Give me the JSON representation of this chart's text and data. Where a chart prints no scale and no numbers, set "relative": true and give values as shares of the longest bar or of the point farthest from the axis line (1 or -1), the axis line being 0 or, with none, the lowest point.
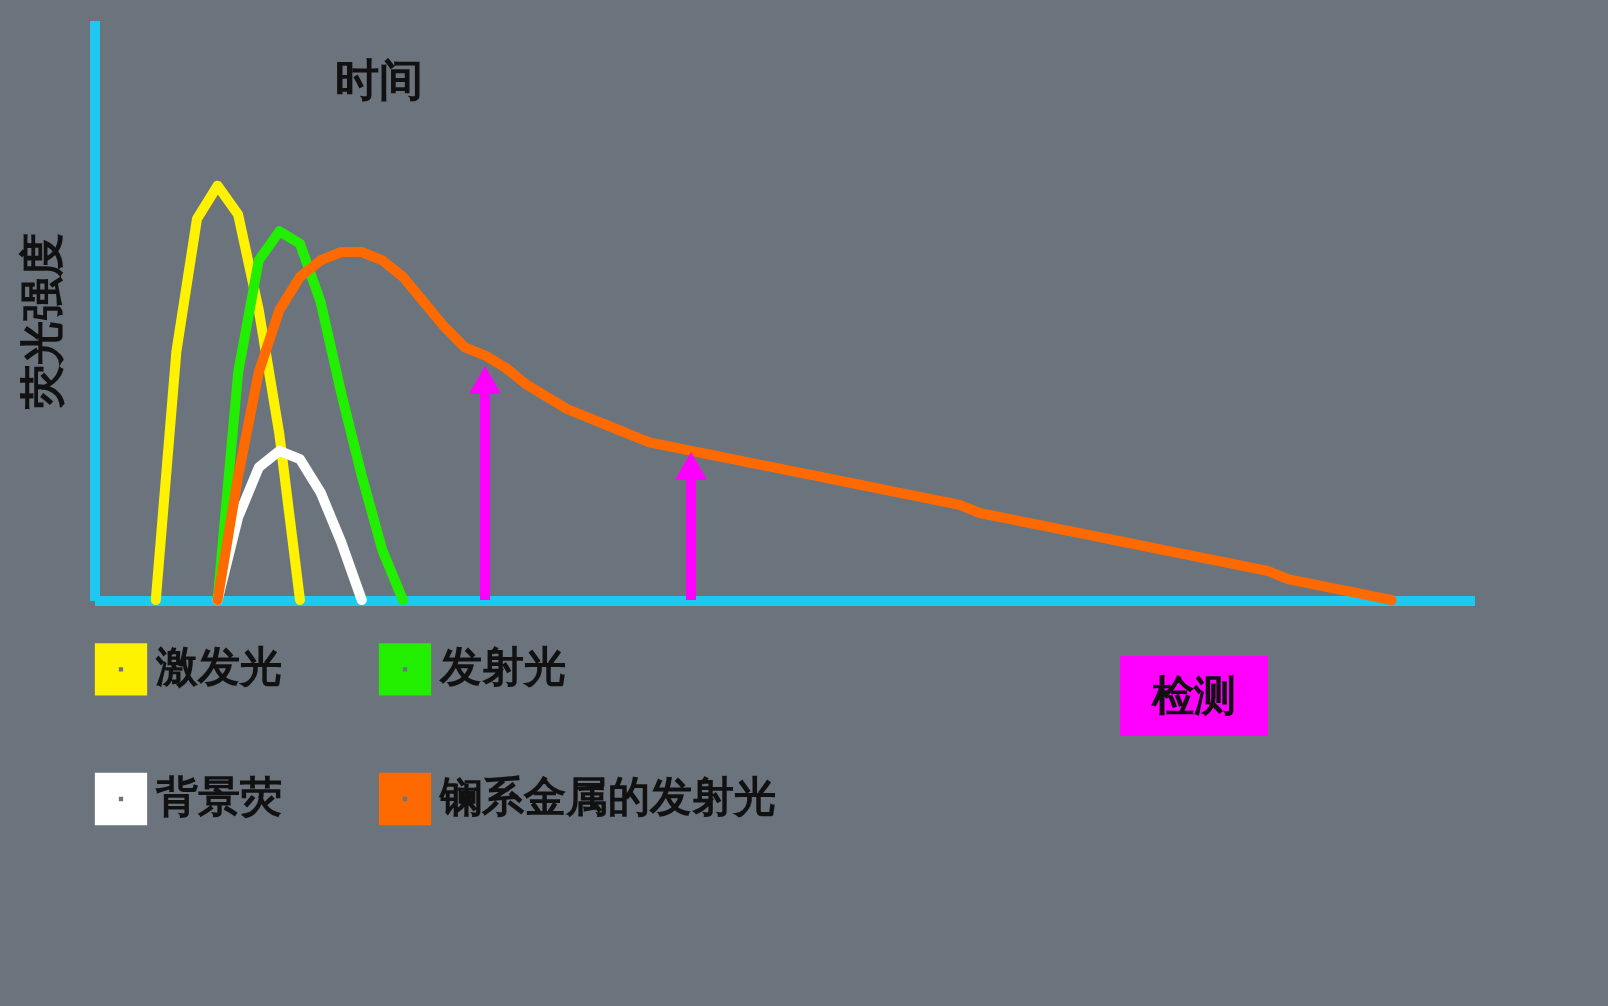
{
  "chart_data": {
    "type": "line",
    "xlabel": "时间",
    "ylabel": "荧光强度",
    "relative": true,
    "legend": "bottom",
    "tick_labels": false,
    "grid": false,
    "annotations": [
      "检测"
    ],
    "line_style": "solid",
    "categories": [
      null,
      null,
      null,
      null,
      null,
      null,
      null,
      null,
      null,
      null,
      null,
      null,
      null,
      null,
      null,
      null,
      null,
      null,
      null,
      null,
      null,
      null,
      null,
      null,
      null,
      null,
      null,
      null,
      null,
      null,
      null,
      null,
      null,
      null,
      null,
      null,
      null,
      null,
      null,
      null,
      null,
      null,
      null,
      null,
      null,
      null,
      null,
      null,
      null,
      null,
      null,
      null,
      null,
      null,
      null,
      null,
      null,
      null,
      null,
      null,
      null
    ],
    "series": [
      {
        "name": "激发光",
        "color": "#fff200",
        "values": [
          0,
          0.6,
          0.92,
          1,
          0.93,
          0.7,
          0.4,
          0,
          null,
          null,
          null,
          null,
          null,
          null,
          null,
          null,
          null,
          null,
          null,
          null,
          null,
          null,
          null,
          null,
          null,
          null,
          null,
          null,
          null,
          null,
          null,
          null,
          null,
          null,
          null,
          null,
          null,
          null,
          null,
          null,
          null,
          null,
          null,
          null,
          null,
          null,
          null,
          null,
          null,
          null,
          null,
          null,
          null,
          null,
          null,
          null,
          null,
          null,
          null,
          null,
          null
        ]
      },
      {
        "name": "发射光",
        "color": "#22ee00",
        "values": [
          null,
          null,
          null,
          0,
          0.55,
          0.82,
          0.89,
          0.86,
          0.72,
          0.5,
          0.3,
          0.12,
          0,
          null,
          null,
          null,
          null,
          null,
          null,
          null,
          null,
          null,
          null,
          null,
          null,
          null,
          null,
          null,
          null,
          null,
          null,
          null,
          null,
          null,
          null,
          null,
          null,
          null,
          null,
          null,
          null,
          null,
          null,
          null,
          null,
          null,
          null,
          null,
          null,
          null,
          null,
          null,
          null,
          null,
          null,
          null,
          null,
          null,
          null,
          null,
          null
        ]
      },
      {
        "name": "背景荧",
        "color": "#ffffff",
        "values": [
          null,
          null,
          null,
          0,
          0.2,
          0.32,
          0.36,
          0.34,
          0.26,
          0.14,
          0,
          null,
          null,
          null,
          null,
          null,
          null,
          null,
          null,
          null,
          null,
          null,
          null,
          null,
          null,
          null,
          null,
          null,
          null,
          null,
          null,
          null,
          null,
          null,
          null,
          null,
          null,
          null,
          null,
          null,
          null,
          null,
          null,
          null,
          null,
          null,
          null,
          null,
          null,
          null,
          null,
          null,
          null,
          null,
          null,
          null,
          null,
          null,
          null,
          null,
          null
        ]
      },
      {
        "name": "镧系金属的发射光",
        "color": "#ff6a00",
        "values": [
          null,
          null,
          null,
          0,
          0.3,
          0.55,
          0.7,
          0.78,
          0.82,
          0.84,
          0.84,
          0.82,
          0.78,
          0.72,
          0.66,
          0.61,
          0.59,
          0.56,
          0.52,
          0.49,
          0.46,
          0.44,
          0.42,
          0.4,
          0.38,
          0.37,
          0.36,
          0.35,
          0.34,
          0.33,
          0.32,
          0.31,
          0.3,
          0.29,
          0.28,
          0.27,
          0.26,
          0.25,
          0.24,
          0.23,
          0.21,
          0.2,
          0.19,
          0.18,
          0.17,
          0.16,
          0.15,
          0.14,
          0.13,
          0.12,
          0.11,
          0.1,
          0.09,
          0.08,
          0.07,
          0.05,
          0.04,
          0.03,
          0.02,
          0.01,
          0
        ]
      }
    ]
  }
}
